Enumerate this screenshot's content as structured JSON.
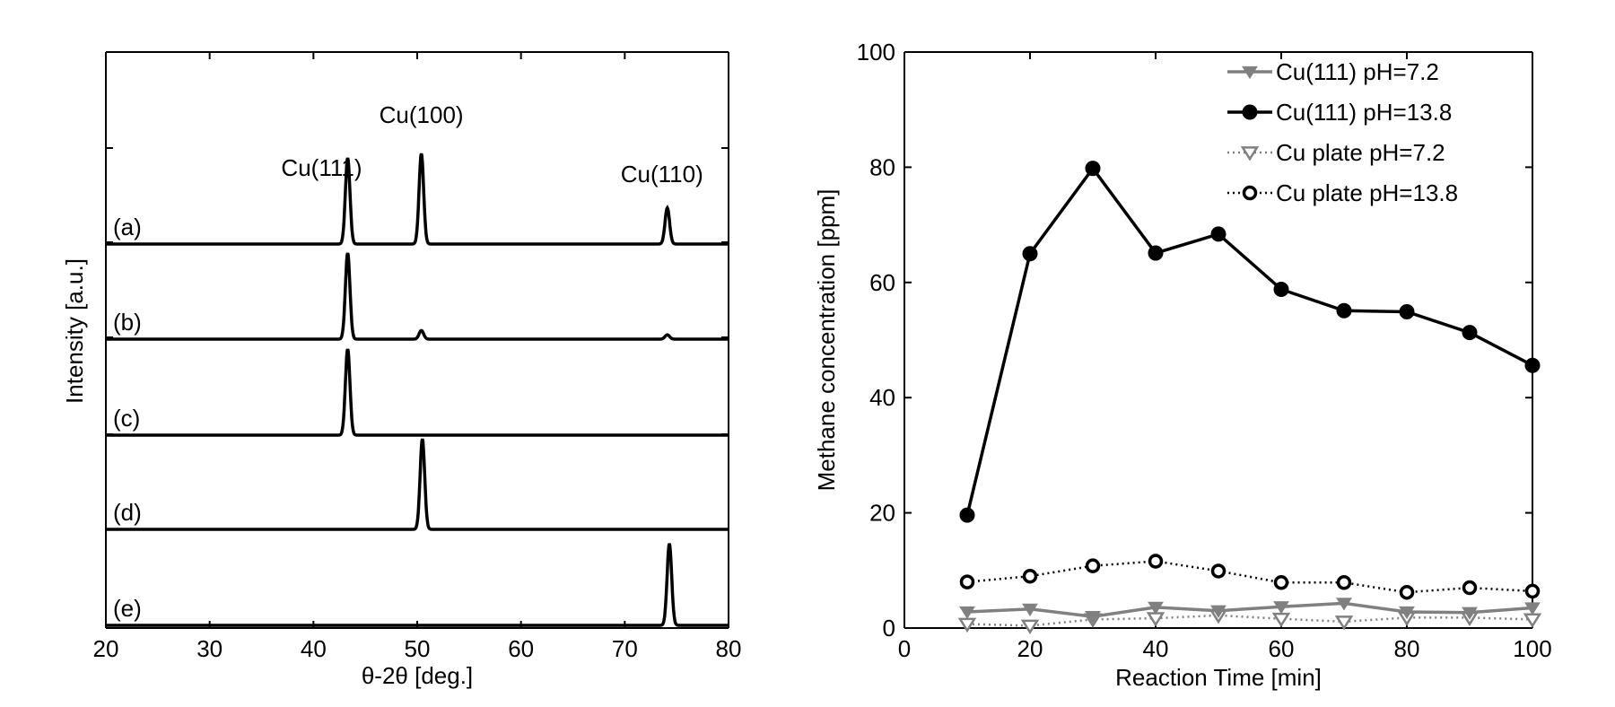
{
  "chart_data": [
    {
      "type": "line",
      "xlabel": "θ-2θ [deg.]",
      "ylabel": "Intensity [a.u.]",
      "xlim": [
        20,
        80
      ],
      "xticks": [
        "20",
        "30",
        "40",
        "50",
        "60",
        "70",
        "80"
      ],
      "yticks_labeled": false,
      "grid": false,
      "peak_labels": [
        {
          "text": "Cu(111)",
          "x": 43.3
        },
        {
          "text": "Cu(100)",
          "x": 50.4
        },
        {
          "text": "Cu(110)",
          "x": 74.1
        }
      ],
      "series": [
        {
          "label": "(a)",
          "peaks": [
            {
              "x": 43.3,
              "height": 1.0
            },
            {
              "x": 50.4,
              "height": 1.05
            },
            {
              "x": 74.1,
              "height": 0.42
            }
          ]
        },
        {
          "label": "(b)",
          "peaks": [
            {
              "x": 43.3,
              "height": 1.0
            },
            {
              "x": 50.4,
              "height": 0.1
            },
            {
              "x": 74.1,
              "height": 0.05
            }
          ]
        },
        {
          "label": "(c)",
          "peaks": [
            {
              "x": 43.3,
              "height": 1.0
            }
          ]
        },
        {
          "label": "(d)",
          "peaks": [
            {
              "x": 50.5,
              "height": 1.05
            }
          ]
        },
        {
          "label": "(e)",
          "peaks": [
            {
              "x": 74.3,
              "height": 0.95
            }
          ]
        }
      ]
    },
    {
      "type": "line",
      "xlabel": "Reaction Time [min]",
      "ylabel": "Methane concentration [ppm]",
      "xlim": [
        0,
        100
      ],
      "ylim": [
        0,
        100
      ],
      "xticks": [
        "0",
        "20",
        "40",
        "60",
        "80",
        "100"
      ],
      "yticks": [
        "0",
        "20",
        "40",
        "60",
        "80",
        "100"
      ],
      "grid": false,
      "legend_position": "top-right",
      "x": [
        10,
        20,
        30,
        40,
        50,
        60,
        70,
        80,
        90,
        100
      ],
      "series": [
        {
          "name": "Cu(111) pH=7.2",
          "color": "#808080",
          "marker": "triangle-down-filled",
          "line": "solid",
          "values": [
            2.8,
            3.3,
            2.0,
            3.6,
            3.0,
            3.7,
            4.3,
            2.8,
            2.7,
            3.5
          ]
        },
        {
          "name": "Cu(111) pH=13.8",
          "color": "#000000",
          "marker": "circle-filled",
          "line": "solid",
          "values": [
            19.6,
            65.0,
            79.8,
            65.1,
            68.4,
            58.8,
            55.1,
            54.9,
            51.3,
            45.6
          ]
        },
        {
          "name": "Cu plate pH=7.2",
          "color": "#808080",
          "marker": "triangle-down-open",
          "line": "dotted",
          "values": [
            0.7,
            0.4,
            1.5,
            1.7,
            2.2,
            1.6,
            1.1,
            1.8,
            1.8,
            1.5
          ]
        },
        {
          "name": "Cu plate pH=13.8",
          "color": "#000000",
          "marker": "circle-open",
          "line": "dotted",
          "values": [
            8.0,
            9.0,
            10.8,
            11.6,
            9.9,
            7.9,
            7.9,
            6.2,
            7.0,
            6.4
          ]
        }
      ]
    }
  ]
}
